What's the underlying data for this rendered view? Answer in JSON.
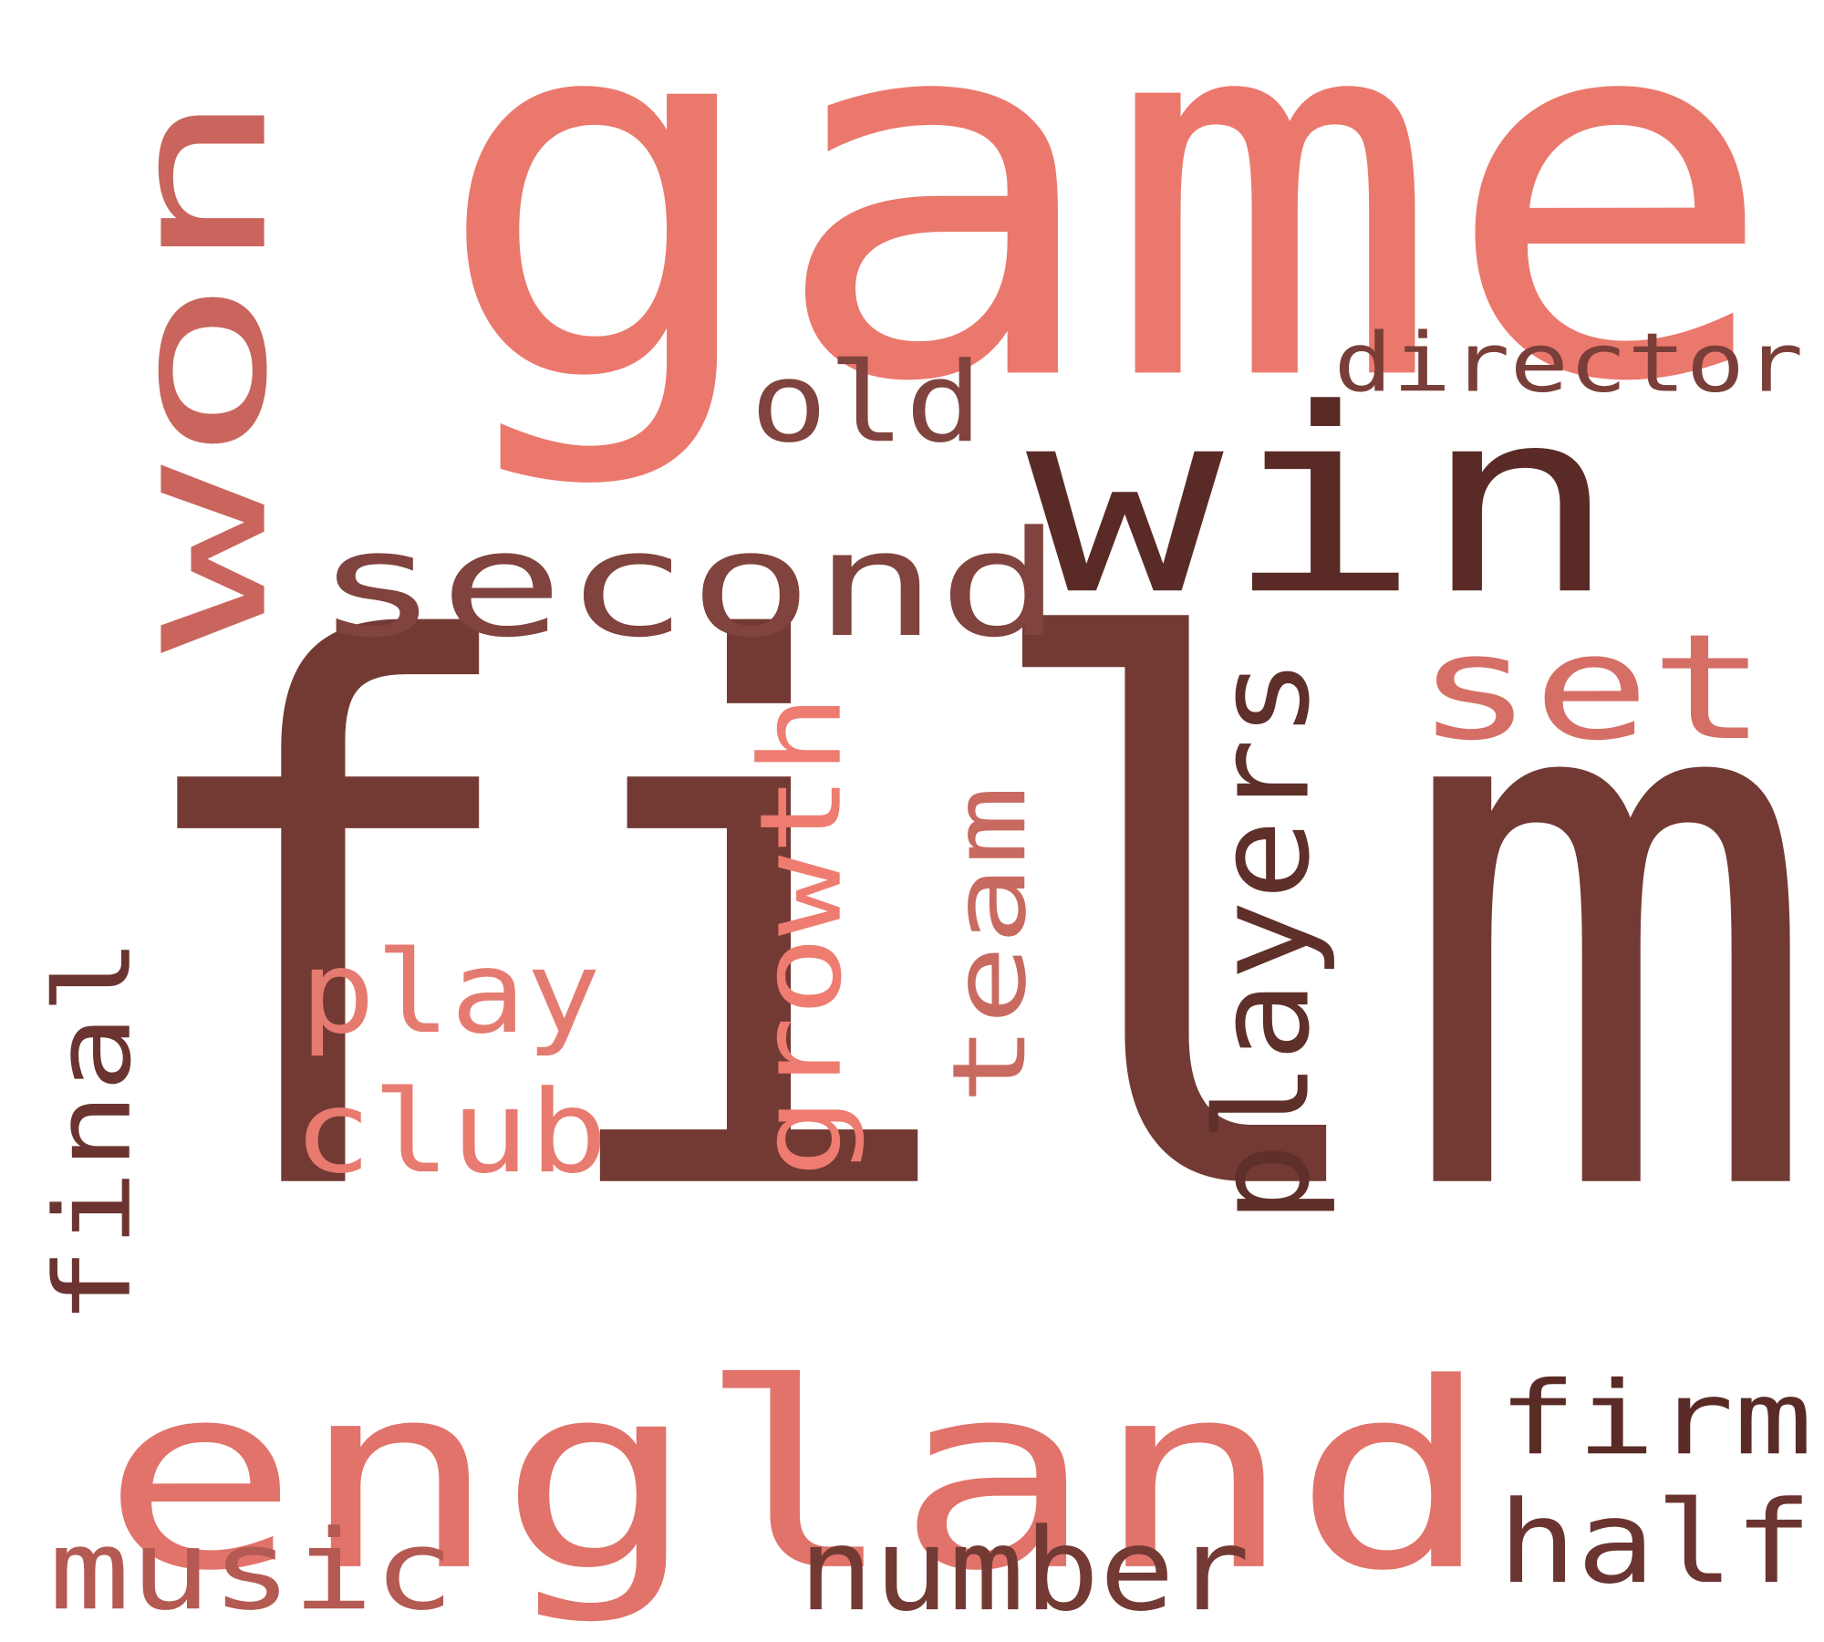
{
  "words": [
    {
      "text": "film",
      "color": "#733a34"
    },
    {
      "text": "game",
      "color": "#eb786c"
    },
    {
      "text": "england",
      "color": "#e1736a"
    },
    {
      "text": "win",
      "color": "#5a2b26"
    },
    {
      "text": "won",
      "color": "#c9655c"
    },
    {
      "text": "second",
      "color": "#80433d"
    },
    {
      "text": "set",
      "color": "#d56f65"
    },
    {
      "text": "players",
      "color": "#5f2f29"
    },
    {
      "text": "growth",
      "color": "#ee7c70"
    },
    {
      "text": "team",
      "color": "#c86a60"
    },
    {
      "text": "play",
      "color": "#e57b70"
    },
    {
      "text": "club",
      "color": "#e87a70"
    },
    {
      "text": "final",
      "color": "#6b3430"
    },
    {
      "text": "old",
      "color": "#80433d"
    },
    {
      "text": "director",
      "color": "#7a3e38"
    },
    {
      "text": "firm",
      "color": "#5a2b26"
    },
    {
      "text": "half",
      "color": "#6b3430"
    },
    {
      "text": "music",
      "color": "#b45a52"
    },
    {
      "text": "number",
      "color": "#733a34"
    }
  ]
}
